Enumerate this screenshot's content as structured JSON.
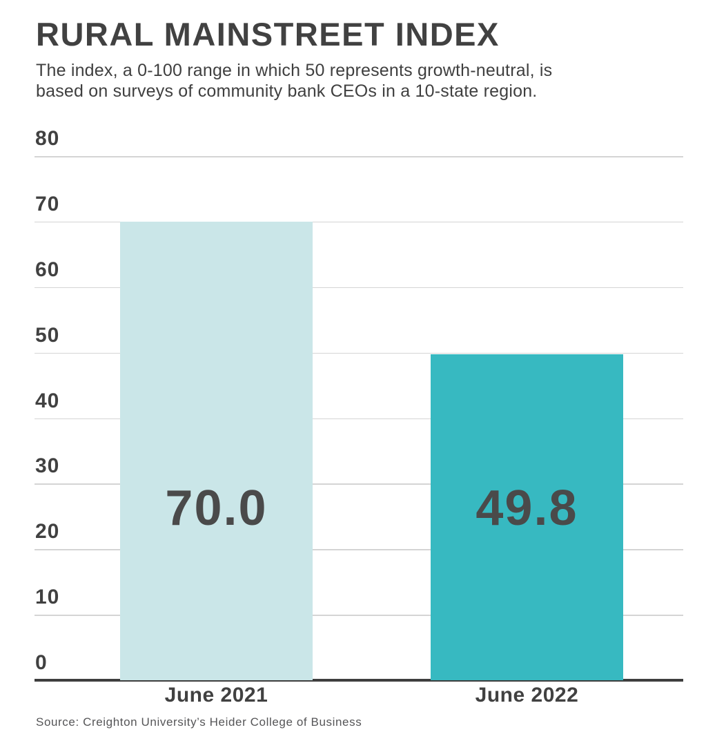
{
  "header": {
    "title": "RURAL MAINSTREET INDEX",
    "subtitle_line1": "The index, a 0-100 range in which 50 represents growth-neutral, is",
    "subtitle_line2": "based on surveys of community bank CEOs in a 10-state region."
  },
  "chart_data": {
    "type": "bar",
    "title": "Rural Mainstreet Index",
    "categories": [
      "June 2021",
      "June 2022"
    ],
    "values": [
      70.0,
      49.8
    ],
    "value_labels": [
      "70.0",
      "49.8"
    ],
    "bar_colors": [
      "#cae6e8",
      "#37b9c1"
    ],
    "xlabel": "",
    "ylabel": "",
    "ylim": [
      0,
      80
    ],
    "yticks": [
      0,
      10,
      20,
      30,
      40,
      50,
      60,
      70,
      80
    ],
    "grid": true,
    "legend": false,
    "colors": {
      "grid": "#d4d4d4",
      "axis": "#3e3e3e",
      "text": "#414141",
      "value_label": "#4a4a4a"
    },
    "layout": {
      "bar_left_fracs": [
        0.1319,
        0.6106
      ],
      "bar_width_frac": 0.2968
    }
  },
  "footer": {
    "source": "Source: Creighton University’s Heider College of Business"
  }
}
